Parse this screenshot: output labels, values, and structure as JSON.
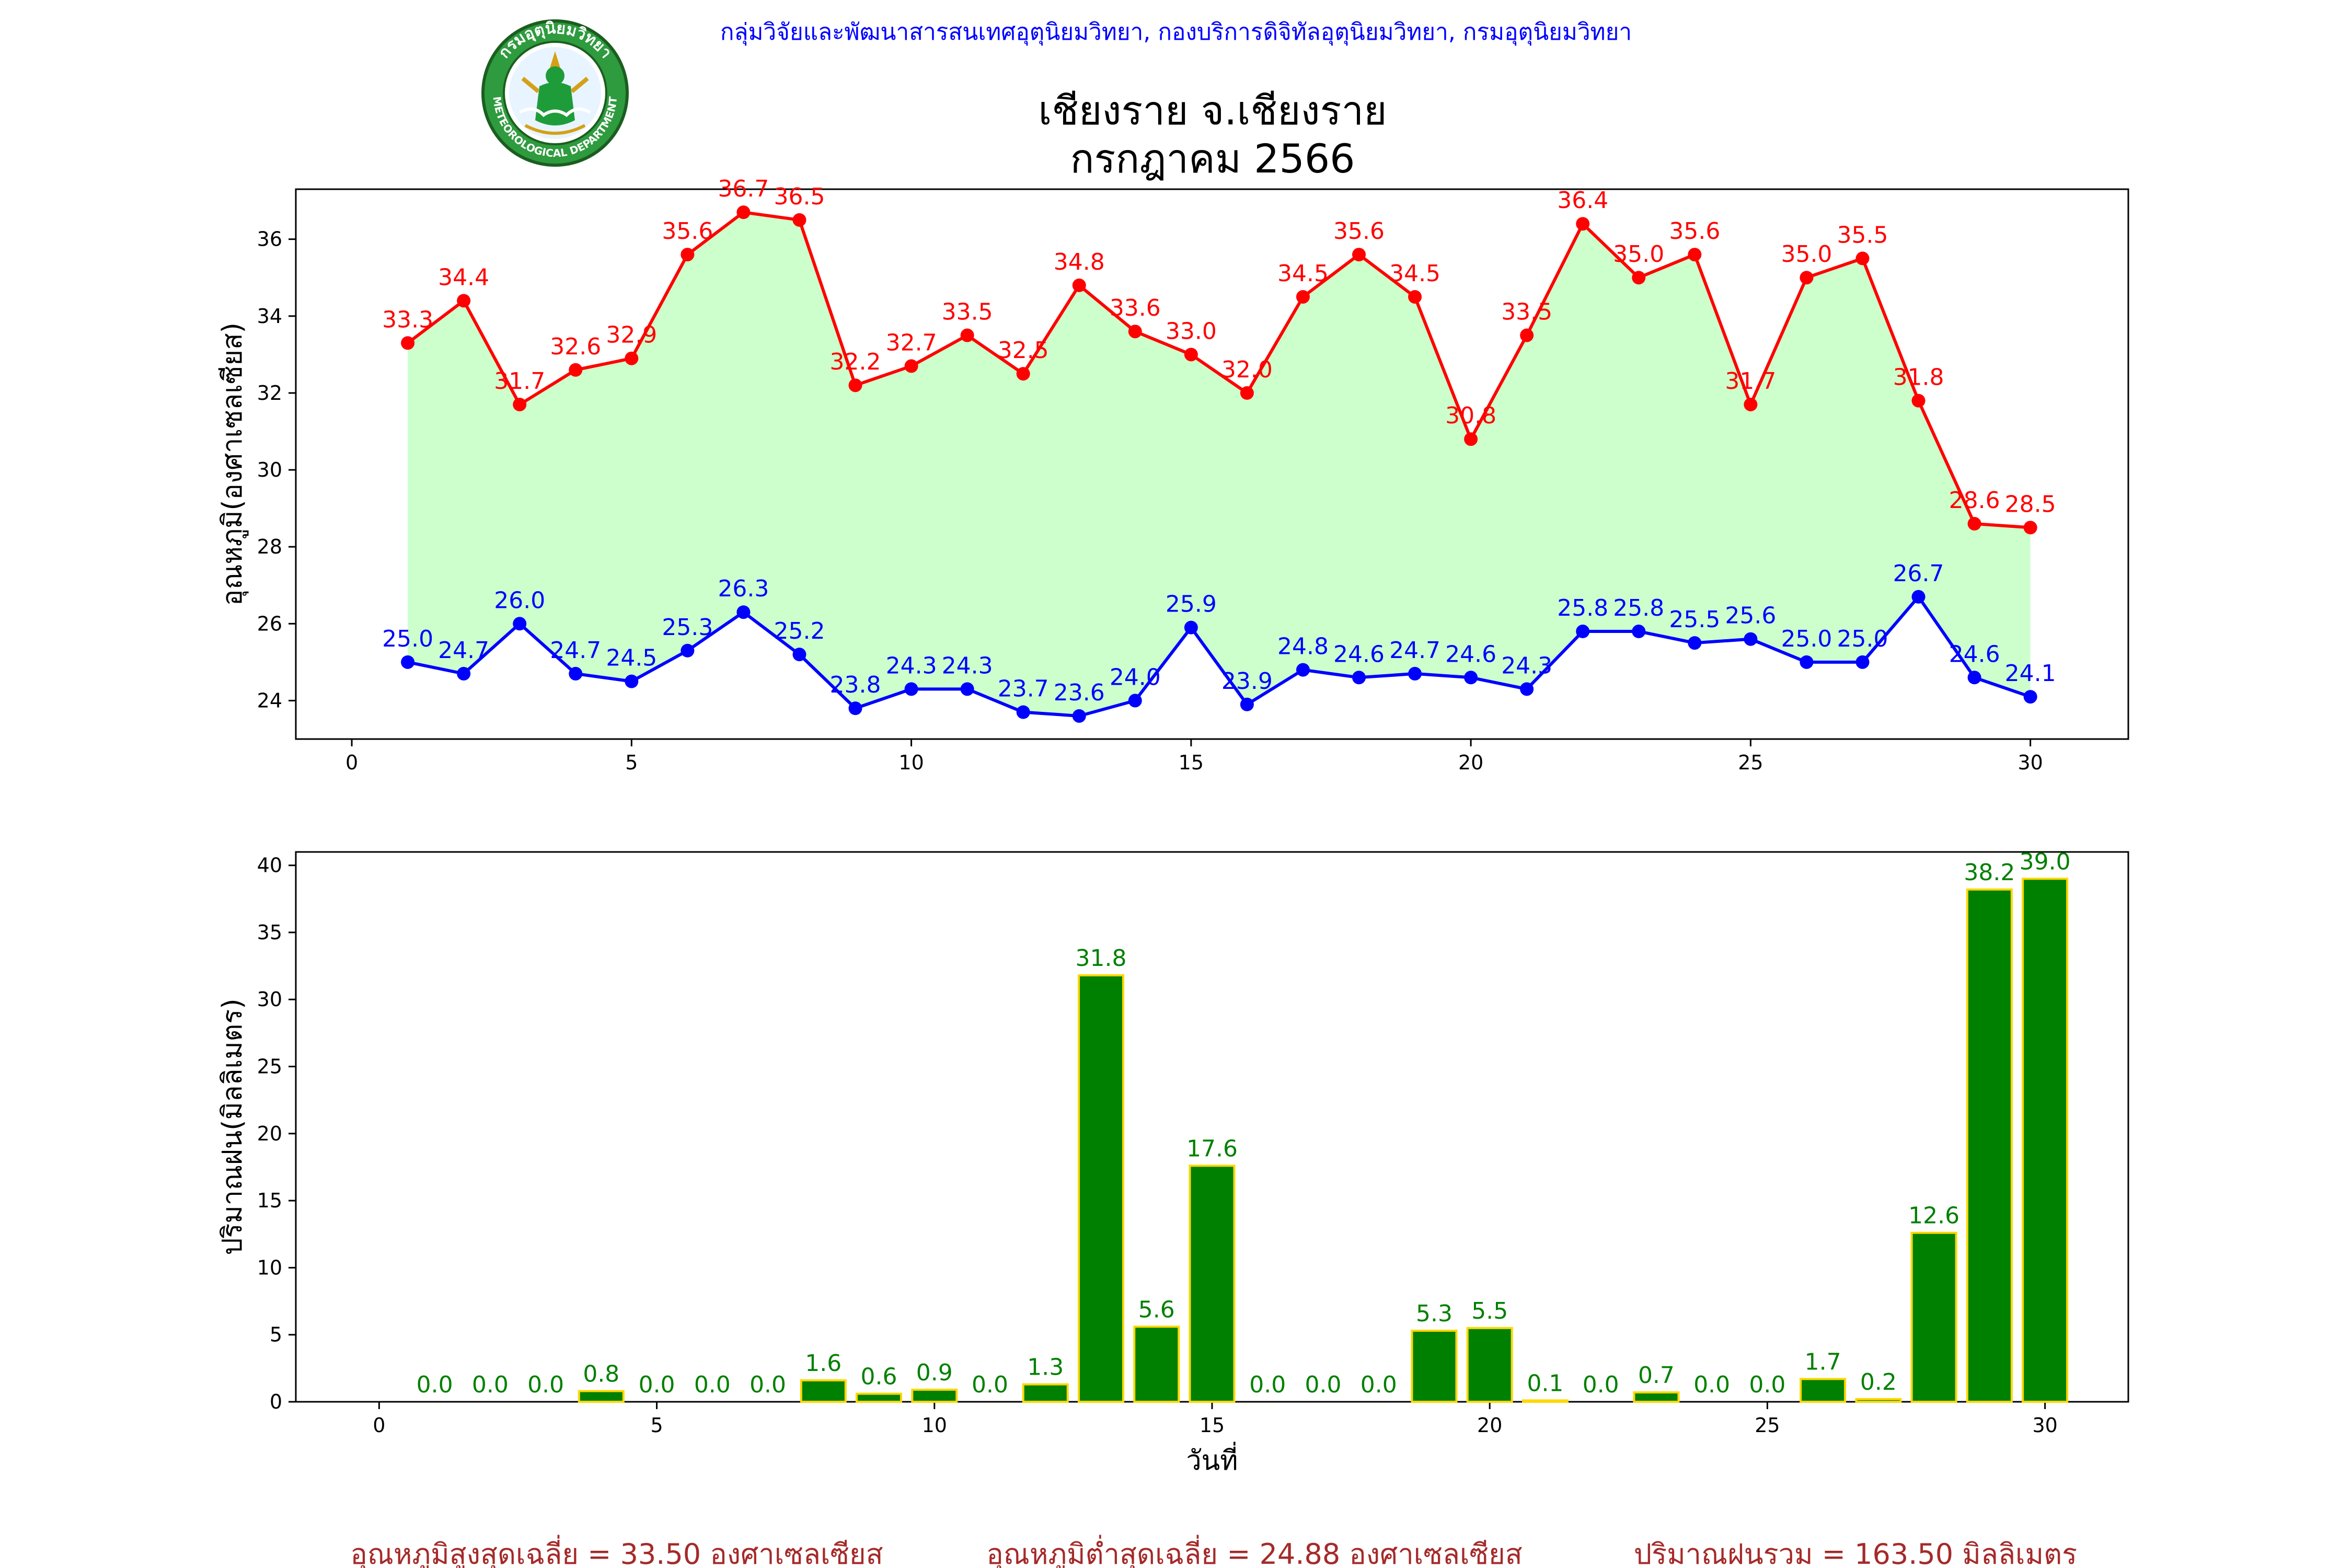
{
  "header": {
    "text": "กลุ่มวิจัยและพัฒนาสารสนเทศอุตุนิยมวิทยา, กองบริการดิจิทัลอุตุนิยมวิทยา, กรมอุตุนิยมวิทยา",
    "color": "#0000ff"
  },
  "logo": {
    "arc_text": "กรมอุตุนิยมวิทยา",
    "bottom_text": "METEOROLOGICAL DEPARTMENT",
    "icon": "meteorological-department-seal"
  },
  "title": {
    "line1": "เชียงราย จ.เชียงราย",
    "line2": "กรกฎาคม 2566"
  },
  "chart_data": [
    {
      "type": "line",
      "ylabel": "อุณหภูมิ(องศาเซลเซียส)",
      "xlabel": "",
      "xlim": [
        -1,
        31.75
      ],
      "ylim": [
        23.0,
        37.3
      ],
      "xticks": [
        0,
        5,
        10,
        15,
        20,
        25,
        30
      ],
      "yticks": [
        24,
        26,
        28,
        30,
        32,
        34,
        36
      ],
      "grid": false,
      "fill_between_color": "#ccffcc",
      "x": [
        1,
        2,
        3,
        4,
        5,
        6,
        7,
        8,
        9,
        10,
        11,
        12,
        13,
        14,
        15,
        16,
        17,
        18,
        19,
        20,
        21,
        22,
        23,
        24,
        25,
        26,
        27,
        28,
        29,
        30
      ],
      "series": [
        {
          "color": "#ff0000",
          "values": [
            33.3,
            34.4,
            31.7,
            32.6,
            32.9,
            35.6,
            36.7,
            36.5,
            32.2,
            32.7,
            33.5,
            32.5,
            34.8,
            33.6,
            33.0,
            32.0,
            34.5,
            35.6,
            34.5,
            30.8,
            33.5,
            36.4,
            35.0,
            35.6,
            31.7,
            35.0,
            35.5,
            31.8,
            28.6,
            28.5
          ]
        },
        {
          "color": "#0000ff",
          "values": [
            25.0,
            24.7,
            26.0,
            24.7,
            24.5,
            25.3,
            26.3,
            25.2,
            23.8,
            24.3,
            24.3,
            23.7,
            23.6,
            24.0,
            25.9,
            23.9,
            24.8,
            24.6,
            24.7,
            24.6,
            24.3,
            25.8,
            25.8,
            25.5,
            25.6,
            25.0,
            25.0,
            26.7,
            24.6,
            24.1
          ]
        }
      ]
    },
    {
      "type": "bar",
      "ylabel": "ปริมาณฝน(มิลลิเมตร)",
      "xlabel": "วันที่",
      "xlim": [
        -1.5,
        31.5
      ],
      "ylim": [
        0,
        41
      ],
      "xticks": [
        0,
        5,
        10,
        15,
        20,
        25,
        30
      ],
      "yticks": [
        0,
        5,
        10,
        15,
        20,
        25,
        30,
        35,
        40
      ],
      "grid": false,
      "bar_color": "#008000",
      "bar_edge_color": "#ffd700",
      "label_color": "#008000",
      "x": [
        1,
        2,
        3,
        4,
        5,
        6,
        7,
        8,
        9,
        10,
        11,
        12,
        13,
        14,
        15,
        16,
        17,
        18,
        19,
        20,
        21,
        22,
        23,
        24,
        25,
        26,
        27,
        28,
        29,
        30
      ],
      "values": [
        0.0,
        0.0,
        0.0,
        0.8,
        0.0,
        0.0,
        0.0,
        1.6,
        0.6,
        0.9,
        0.0,
        1.3,
        31.8,
        5.6,
        17.6,
        0.0,
        0.0,
        0.0,
        5.3,
        5.5,
        0.1,
        0.0,
        0.7,
        0.0,
        0.0,
        1.7,
        0.2,
        12.6,
        38.2,
        39.0
      ]
    }
  ],
  "footer": {
    "color": "#a52a2a",
    "avg_max": "อุณหภูมิสูงสุดเฉลี่ย = 33.50 องศาเซลเซียส",
    "avg_min": "อุณหภูมิต่ำสุดเฉลี่ย = 24.88 องศาเซลเซียส",
    "total_rain": "ปริมาณฝนรวม = 163.50 มิลลิเมตร"
  }
}
